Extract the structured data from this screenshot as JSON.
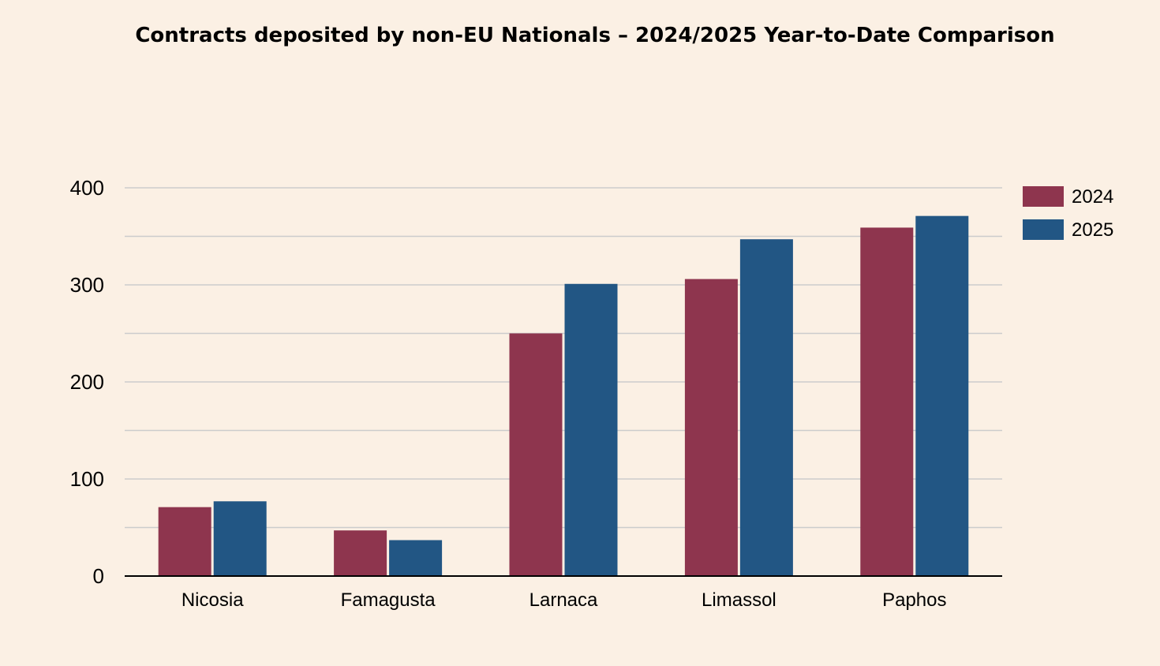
{
  "chart_data": {
    "type": "bar",
    "title": "Contracts deposited by non-EU Nationals – 2024/2025 Year-to-Date Comparison",
    "categories": [
      "Nicosia",
      "Famagusta",
      "Larnaca",
      "Limassol",
      "Paphos"
    ],
    "series": [
      {
        "name": "2024",
        "color": "#8e354e",
        "values": [
          71,
          47,
          250,
          306,
          359
        ]
      },
      {
        "name": "2025",
        "color": "#225684",
        "values": [
          77,
          37,
          301,
          347,
          371
        ]
      }
    ],
    "ylim": [
      0,
      400
    ],
    "yticks": [
      0,
      100,
      200,
      300,
      400
    ],
    "grid": true,
    "minor_grid": true,
    "legend_position": "top-right",
    "xlabel": "",
    "ylabel": ""
  }
}
